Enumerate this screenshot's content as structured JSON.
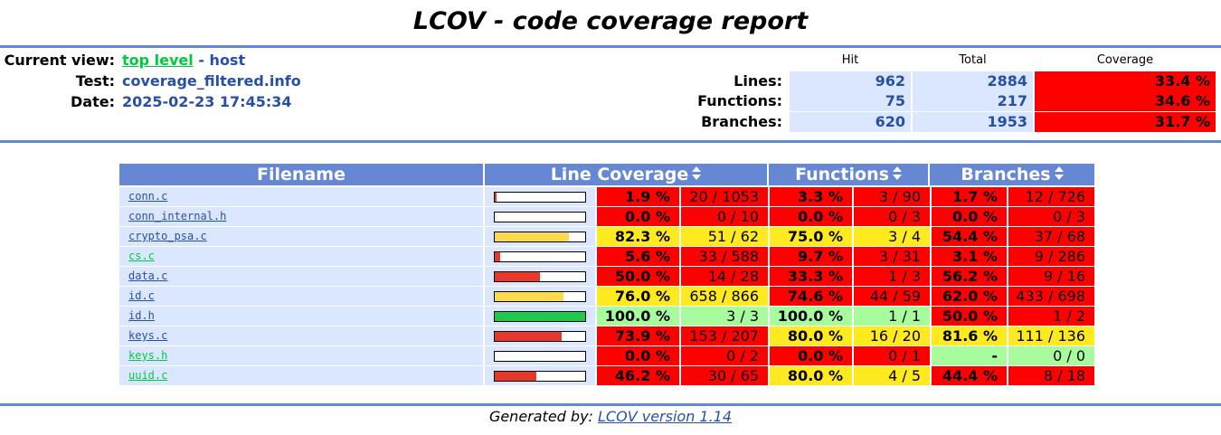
{
  "title": "LCOV - code coverage report",
  "header": {
    "current_view_label": "Current view:",
    "current_view_link": "top level",
    "current_view_sep": " - ",
    "current_view_host": "host",
    "test_label": "Test:",
    "test_value": "coverage_filtered.info",
    "date_label": "Date:",
    "date_value": "2025-02-23 17:45:34"
  },
  "summary": {
    "col_hit": "Hit",
    "col_total": "Total",
    "col_coverage": "Coverage",
    "rows": [
      {
        "label": "Lines:",
        "hit": "962",
        "total": "2884",
        "coverage": "33.4 %"
      },
      {
        "label": "Functions:",
        "hit": "75",
        "total": "217",
        "coverage": "34.6 %"
      },
      {
        "label": "Branches:",
        "hit": "620",
        "total": "1953",
        "coverage": "31.7 %"
      }
    ]
  },
  "table": {
    "headers": {
      "filename": "Filename",
      "line_coverage": "Line Coverage",
      "functions": "Functions",
      "branches": "Branches"
    },
    "colors": {
      "low": "#ff0000",
      "med": "#ffea20",
      "high": "#a7fc9d",
      "bar_low": "#e8382c",
      "bar_med": "#fcd94e",
      "bar_high": "#22c84a",
      "link_green": "#00cb40",
      "link_blue": "#284fa8"
    },
    "rows": [
      {
        "file": "conn.c",
        "link": "blue",
        "line_pct": "1.9 %",
        "line_frac": "20 / 1053",
        "line_level": "low",
        "bar": 1.9,
        "fn_pct": "3.3 %",
        "fn_frac": "3 / 90",
        "fn_level": "low",
        "br_pct": "1.7 %",
        "br_frac": "12 / 726",
        "br_level": "low"
      },
      {
        "file": "conn_internal.h",
        "link": "blue",
        "line_pct": "0.0 %",
        "line_frac": "0 / 10",
        "line_level": "low",
        "bar": 0,
        "fn_pct": "0.0 %",
        "fn_frac": "0 / 3",
        "fn_level": "low",
        "br_pct": "0.0 %",
        "br_frac": "0 / 3",
        "br_level": "low"
      },
      {
        "file": "crypto_psa.c",
        "link": "blue",
        "line_pct": "82.3 %",
        "line_frac": "51 / 62",
        "line_level": "med",
        "bar": 82.3,
        "fn_pct": "75.0 %",
        "fn_frac": "3 / 4",
        "fn_level": "med",
        "br_pct": "54.4 %",
        "br_frac": "37 / 68",
        "br_level": "low"
      },
      {
        "file": "cs.c",
        "link": "green",
        "line_pct": "5.6 %",
        "line_frac": "33 / 588",
        "line_level": "low",
        "bar": 5.6,
        "fn_pct": "9.7 %",
        "fn_frac": "3 / 31",
        "fn_level": "low",
        "br_pct": "3.1 %",
        "br_frac": "9 / 286",
        "br_level": "low"
      },
      {
        "file": "data.c",
        "link": "blue",
        "line_pct": "50.0 %",
        "line_frac": "14 / 28",
        "line_level": "low",
        "bar": 50.0,
        "fn_pct": "33.3 %",
        "fn_frac": "1 / 3",
        "fn_level": "low",
        "br_pct": "56.2 %",
        "br_frac": "9 / 16",
        "br_level": "low"
      },
      {
        "file": "id.c",
        "link": "blue",
        "line_pct": "76.0 %",
        "line_frac": "658 / 866",
        "line_level": "med",
        "bar": 76.0,
        "fn_pct": "74.6 %",
        "fn_frac": "44 / 59",
        "fn_level": "low",
        "br_pct": "62.0 %",
        "br_frac": "433 / 698",
        "br_level": "low"
      },
      {
        "file": "id.h",
        "link": "blue",
        "line_pct": "100.0 %",
        "line_frac": "3 / 3",
        "line_level": "high",
        "bar": 100.0,
        "fn_pct": "100.0 %",
        "fn_frac": "1 / 1",
        "fn_level": "high",
        "br_pct": "50.0 %",
        "br_frac": "1 / 2",
        "br_level": "low"
      },
      {
        "file": "keys.c",
        "link": "blue",
        "line_pct": "73.9 %",
        "line_frac": "153 / 207",
        "line_level": "low",
        "bar": 73.9,
        "fn_pct": "80.0 %",
        "fn_frac": "16 / 20",
        "fn_level": "med",
        "br_pct": "81.6 %",
        "br_frac": "111 / 136",
        "br_level": "med"
      },
      {
        "file": "keys.h",
        "link": "green",
        "line_pct": "0.0 %",
        "line_frac": "0 / 2",
        "line_level": "low",
        "bar": 0,
        "fn_pct": "0.0 %",
        "fn_frac": "0 / 1",
        "fn_level": "low",
        "br_pct": "-",
        "br_frac": "0 / 0",
        "br_level": "high"
      },
      {
        "file": "uuid.c",
        "link": "green",
        "line_pct": "46.2 %",
        "line_frac": "30 / 65",
        "line_level": "low",
        "bar": 46.2,
        "fn_pct": "80.0 %",
        "fn_frac": "4 / 5",
        "fn_level": "med",
        "br_pct": "44.4 %",
        "br_frac": "8 / 18",
        "br_level": "low"
      }
    ]
  },
  "footer": {
    "prefix": "Generated by: ",
    "link": "LCOV version 1.14"
  }
}
